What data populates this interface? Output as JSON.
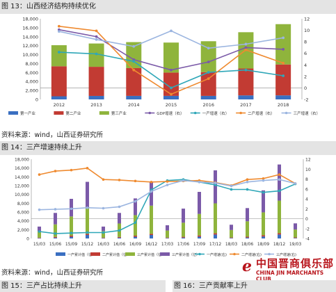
{
  "figure13": {
    "caption": "图 13：山西经济结构持续优化",
    "source": "资料来源：wind，山西证券研究所"
  },
  "figure14": {
    "caption": "图 14：三产增速持续上升",
    "source": "资料来源：wind，山西证券研究所"
  },
  "figure15": {
    "caption": "图 15：三产占比持续上升"
  },
  "figure16": {
    "caption": "图 16：三产贡献率上升"
  },
  "watermark": {
    "logo_mark": "e",
    "brand_cn": "中国晋商俱乐部",
    "brand_en": "CHINA JIN MARCHANTS CLUB"
  },
  "colors": {
    "primary": "#3a6fc1",
    "secondary": "#c23b33",
    "tertiary": "#8fb43c",
    "gdp": "#7b5aa8",
    "g1": "#2fa7b8",
    "g2": "#ef8a2f",
    "g3": "#9bb5e0"
  },
  "chart_data": [
    {
      "type": "bar",
      "stacked": true,
      "categories": [
        "2012",
        "2013",
        "2014",
        "2015",
        "2016",
        "2017",
        "2018"
      ],
      "ylim": [
        0,
        18000
      ],
      "yticks": [
        0,
        2000,
        4000,
        6000,
        8000,
        10000,
        12000,
        14000,
        16000,
        18000
      ],
      "y2lim": [
        -2,
        12
      ],
      "y2ticks": [
        -2,
        0,
        2,
        4,
        6,
        8,
        10,
        12
      ],
      "grid": false,
      "legend_position": "bottom",
      "series": [
        {
          "name": "第一产业",
          "axis": "left",
          "kind": "bar",
          "color": "#3a6fc1",
          "values": [
            700,
            780,
            790,
            790,
            790,
            900,
            900
          ]
        },
        {
          "name": "第二产业",
          "axis": "left",
          "kind": "bar",
          "color": "#c23b33",
          "values": [
            6700,
            6500,
            6200,
            5200,
            5300,
            6000,
            6900
          ]
        },
        {
          "name": "第三产业",
          "axis": "left",
          "kind": "bar",
          "color": "#8fb43c",
          "values": [
            4700,
            5200,
            5800,
            6700,
            6900,
            8100,
            9000
          ]
        },
        {
          "name": "GDP增速（右）",
          "axis": "right",
          "kind": "line",
          "color": "#7b5aa8",
          "values": [
            10.1,
            8.9,
            4.9,
            3.1,
            4.5,
            7.0,
            6.7
          ]
        },
        {
          "name": "一产增速（右）",
          "axis": "right",
          "kind": "line",
          "color": "#2fa7b8",
          "values": [
            6.2,
            5.9,
            4.6,
            0.0,
            2.7,
            3.1,
            2.1
          ]
        },
        {
          "name": "二产增速（右）",
          "axis": "right",
          "kind": "line",
          "color": "#ef8a2f",
          "values": [
            10.7,
            9.9,
            3.1,
            -1.1,
            1.6,
            6.6,
            4.3
          ]
        },
        {
          "name": "三产增速（右）",
          "axis": "right",
          "kind": "line",
          "color": "#9bb5e0",
          "values": [
            9.8,
            8.4,
            7.2,
            9.9,
            6.9,
            7.6,
            8.7
          ]
        }
      ]
    },
    {
      "type": "bar",
      "stacked": true,
      "categories": [
        "15/03",
        "15/06",
        "15/09",
        "15/12",
        "16/03",
        "16/06",
        "16/09",
        "16/12",
        "17/03",
        "17/06",
        "17/09",
        "17/12",
        "18/03",
        "18/06",
        "18/09",
        "18/12",
        "19/03"
      ],
      "ylim": [
        0,
        18000
      ],
      "yticks": [
        0,
        2000,
        4000,
        6000,
        8000,
        10000,
        12000,
        14000,
        16000,
        18000
      ],
      "y2lim": [
        -4,
        12
      ],
      "y2ticks": [
        -4,
        -2,
        0,
        2,
        4,
        6,
        8,
        10,
        12
      ],
      "grid": false,
      "legend_position": "bottom",
      "series": [
        {
          "name": "一产累计值（亿）",
          "axis": "left",
          "kind": "bar",
          "color": "#3a6fc1",
          "values": [
            90,
            180,
            380,
            790,
            90,
            180,
            380,
            790,
            100,
            200,
            420,
            890,
            110,
            210,
            450,
            900,
            110
          ]
        },
        {
          "name": "二产累计值（亿）",
          "axis": "left",
          "kind": "bar",
          "color": "#c23b33",
          "values": [
            100,
            180,
            260,
            270,
            100,
            170,
            250,
            260,
            100,
            180,
            260,
            280,
            110,
            190,
            280,
            300,
            120
          ]
        },
        {
          "name": "三产累计值（亿）",
          "axis": "left",
          "kind": "bar",
          "color": "#8fb43c",
          "values": [
            1410,
            2840,
            4360,
            6000,
            1510,
            3050,
            4670,
            6400,
            1600,
            3200,
            4900,
            6800,
            1700,
            3500,
            5200,
            7400,
            1800
          ]
        },
        {
          "name": "三产累计值（亿）",
          "axis": "left",
          "kind": "bar",
          "color": "#7b5aa8",
          "values": [
            1100,
            2600,
            4000,
            5800,
            1000,
            2400,
            3800,
            5500,
            1200,
            3200,
            5000,
            7500,
            1200,
            3000,
            5000,
            8200,
            1400
          ]
        },
        {
          "name": "一产增速(右)",
          "axis": "right",
          "kind": "line",
          "color": "#2fa7b8",
          "values": [
            -2.6,
            -3.0,
            -2.9,
            -2.8,
            -2.8,
            -2.4,
            -0.8,
            5.8,
            7.7,
            7.9,
            7.4,
            6.8,
            5.9,
            5.9,
            5.3,
            5.6,
            7.0
          ]
        },
        {
          "name": "二产增速(右)",
          "axis": "right",
          "kind": "line",
          "color": "#ef8a2f",
          "values": [
            8.9,
            9.6,
            9.8,
            10.2,
            7.9,
            7.8,
            7.6,
            7.4,
            7.5,
            7.6,
            7.7,
            7.3,
            6.7,
            7.9,
            8.1,
            8.9,
            7.1
          ]
        },
        {
          "name": "三产增速(右)",
          "axis": "right",
          "kind": "line",
          "color": "#9bb5e0",
          "values": [
            1.8,
            1.9,
            2.0,
            2.2,
            2.1,
            2.4,
            3.5,
            5.5,
            6.8,
            7.7,
            7.4,
            7.2,
            6.6,
            7.4,
            7.7,
            7.9,
            7.1
          ]
        }
      ]
    }
  ]
}
